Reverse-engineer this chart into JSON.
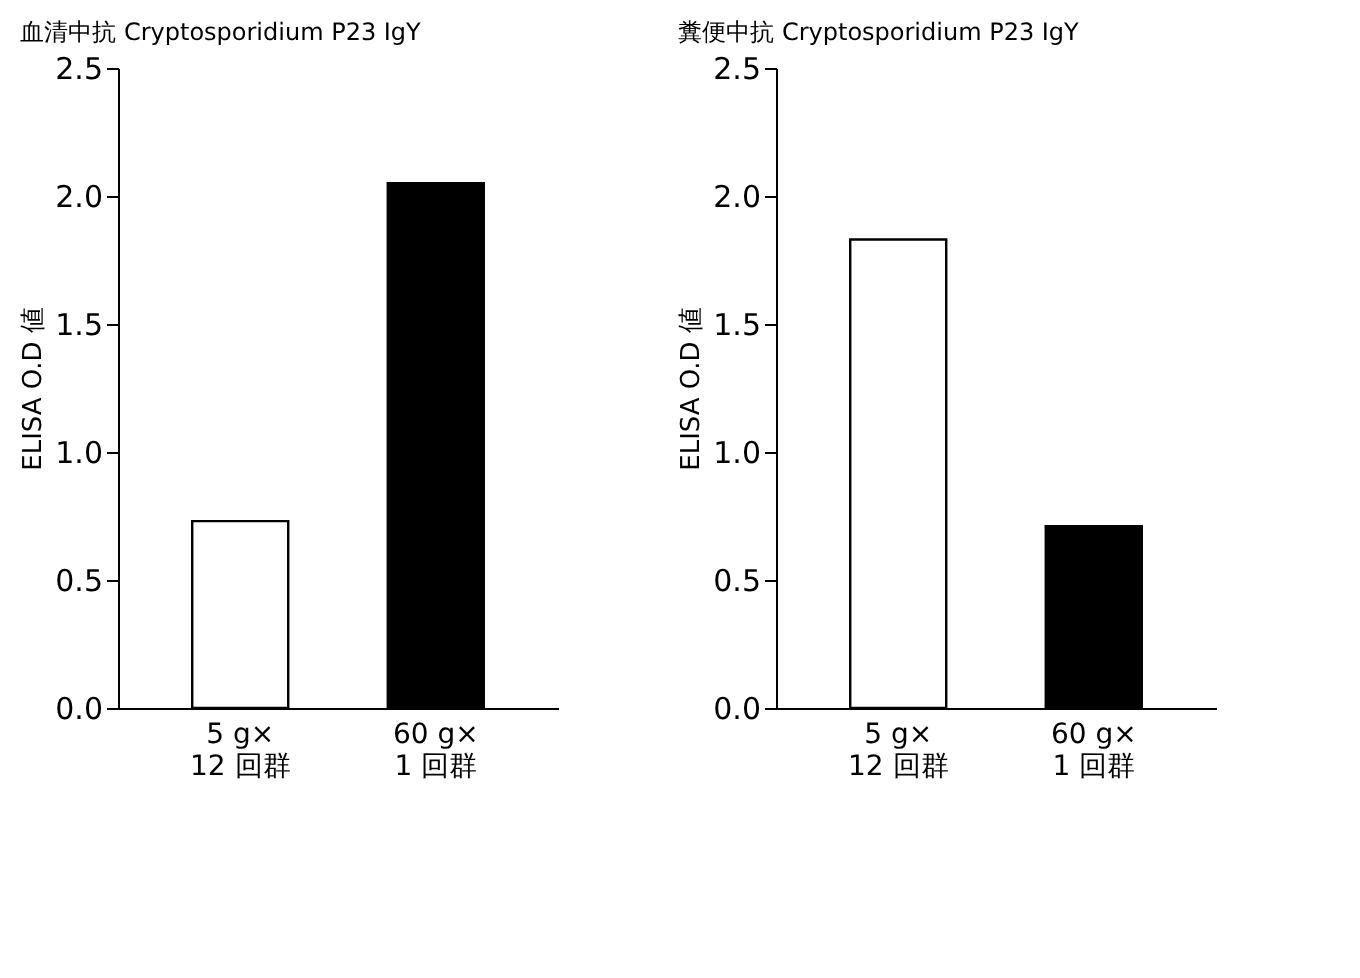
{
  "chart_data": [
    {
      "type": "bar",
      "title": "血清中抗 Cryptosporidium P23 IgY",
      "ylabel": "ELISA O.D 値",
      "categories": [
        "5 g×\n12 回群",
        "60 g×\n1 回群"
      ],
      "values": [
        0.73,
        2.05
      ],
      "colors": [
        "#ffffff",
        "#000000"
      ],
      "ylim": [
        0,
        2.5
      ],
      "yticks": [
        {
          "value": 0,
          "label": "0.0"
        },
        0.5,
        {
          "value": 1,
          "label": "1.0"
        },
        1.5,
        {
          "value": 2,
          "label": "2.0"
        },
        2.5
      ],
      "grid": false
    },
    {
      "type": "bar",
      "title": "糞便中抗 Cryptosporidium P23 IgY",
      "ylabel": "ELISA O.D 値",
      "categories": [
        "5 g×\n12 回群",
        "60 g×\n1 回群"
      ],
      "values": [
        1.83,
        0.71
      ],
      "colors": [
        "#ffffff",
        "#000000"
      ],
      "ylim": [
        0,
        2.5
      ],
      "yticks": [
        {
          "value": 0,
          "label": "0.0"
        },
        0.5,
        {
          "value": 1,
          "label": "1.0"
        },
        1.5,
        {
          "value": 2,
          "label": "2.0"
        },
        2.5
      ],
      "grid": false
    }
  ]
}
